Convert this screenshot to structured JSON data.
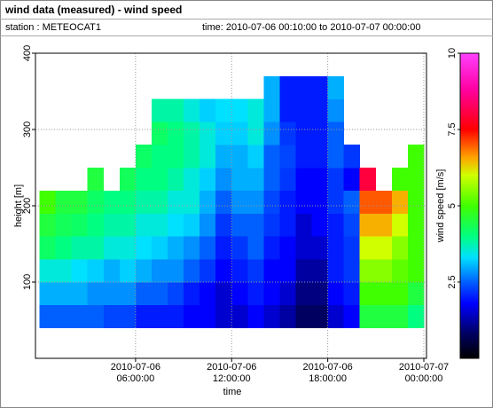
{
  "chart_data": {
    "type": "heatmap",
    "title": "wind data (measured) - wind speed",
    "station": "station : METEOCAT1",
    "time": "time: 2010-07-06 00:10:00 to 2010-07-07 00:00:00",
    "xlabel": "time",
    "ylabel": "height [m]",
    "colorbar_label": "wind speed [m/s]",
    "x_bins": [
      "2010-07-06 00:00:00",
      "2010-07-06 01:00:00",
      "2010-07-06 02:00:00",
      "2010-07-06 03:00:00",
      "2010-07-06 04:00:00",
      "2010-07-06 05:00:00",
      "2010-07-06 06:00:00",
      "2010-07-06 07:00:00",
      "2010-07-06 08:00:00",
      "2010-07-06 09:00:00",
      "2010-07-06 10:00:00",
      "2010-07-06 11:00:00",
      "2010-07-06 12:00:00",
      "2010-07-06 13:00:00",
      "2010-07-06 14:00:00",
      "2010-07-06 15:00:00",
      "2010-07-06 16:00:00",
      "2010-07-06 17:00:00",
      "2010-07-06 18:00:00",
      "2010-07-06 19:00:00",
      "2010-07-06 20:00:00",
      "2010-07-06 21:00:00",
      "2010-07-06 22:00:00",
      "2010-07-06 23:00:00",
      "2010-07-07 00:00:00"
    ],
    "y_bins": [
      40,
      70,
      100,
      130,
      160,
      190,
      220,
      250,
      280,
      310,
      340,
      370
    ],
    "values": [
      [
        2.5,
        3,
        3.5,
        4.2,
        4.5,
        5,
        null,
        null,
        null,
        null,
        null
      ],
      [
        2.5,
        3,
        3.5,
        4,
        4.3,
        4.5,
        null,
        null,
        null,
        null,
        null
      ],
      [
        2.5,
        3,
        3.3,
        3.8,
        4.2,
        4.5,
        null,
        null,
        null,
        null,
        null
      ],
      [
        2.5,
        2.8,
        3.2,
        3.8,
        4,
        4.2,
        4.5,
        null,
        null,
        null,
        null
      ],
      [
        2.3,
        2.8,
        3,
        3.5,
        3.8,
        4,
        null,
        null,
        null,
        null,
        null
      ],
      [
        2.3,
        2.8,
        3.2,
        3.5,
        3.8,
        4,
        4.3,
        null,
        null,
        null,
        null
      ],
      [
        2,
        2.5,
        3,
        3.3,
        3.5,
        3.8,
        4,
        4.2,
        null,
        null,
        null
      ],
      [
        2,
        2.5,
        2.8,
        3.2,
        3.5,
        3.8,
        4,
        4,
        4.2,
        3.8,
        null
      ],
      [
        2,
        2.3,
        2.8,
        3,
        3.3,
        3.5,
        3.8,
        4,
        4,
        3.8,
        null
      ],
      [
        1.8,
        2,
        2.5,
        2.8,
        3.2,
        3.5,
        3.5,
        3.8,
        3.8,
        3.5,
        null
      ],
      [
        1.8,
        1.8,
        2.2,
        2.5,
        2.8,
        3,
        3.2,
        3.5,
        3.5,
        3.2,
        null
      ],
      [
        1.5,
        1.5,
        1.8,
        2,
        2.2,
        2.5,
        2.8,
        3,
        3.2,
        3.3,
        null
      ],
      [
        1.5,
        1.8,
        2,
        2.2,
        2.5,
        2.8,
        3,
        3,
        3.2,
        3.3,
        null
      ],
      [
        1.8,
        2,
        2.2,
        2.5,
        2.5,
        2.8,
        3,
        3.2,
        3.5,
        3.5,
        null
      ],
      [
        1.5,
        1.8,
        1.8,
        2,
        2.2,
        2.3,
        2.5,
        2.5,
        2.8,
        3,
        3
      ],
      [
        1.2,
        1.5,
        1.8,
        1.8,
        2,
        2,
        2.2,
        2.3,
        2.2,
        2,
        2
      ],
      [
        0.8,
        1,
        1.2,
        1.5,
        1.5,
        1.8,
        1.8,
        2,
        2,
        2,
        2
      ],
      [
        0.8,
        1,
        1.2,
        1.5,
        1.8,
        1.8,
        1.8,
        2,
        2,
        2,
        2
      ],
      [
        1.5,
        1.8,
        2,
        2,
        2,
        2.2,
        2.2,
        2.5,
        2.5,
        2.8,
        3
      ],
      [
        1.8,
        2,
        2.2,
        2.2,
        2.3,
        2.5,
        1.8,
        2.2,
        null,
        null,
        null
      ],
      [
        4.5,
        5,
        5.5,
        6,
        6.5,
        7,
        8,
        null,
        null,
        null,
        null
      ],
      [
        4.5,
        5,
        5.5,
        6,
        6.5,
        7,
        null,
        null,
        null,
        null,
        null
      ],
      [
        4.5,
        5,
        5.2,
        5.5,
        6,
        6.5,
        5,
        null,
        null,
        null,
        null
      ],
      [
        4,
        4.5,
        5,
        5,
        5,
        5,
        5,
        5,
        null,
        null,
        null
      ]
    ],
    "xlim": [
      "2010-07-05 23:45:00",
      "2010-07-07 00:10:00"
    ],
    "xticks": [
      "2010-07-06 06:00:00",
      "2010-07-06 12:00:00",
      "2010-07-06 18:00:00",
      "2010-07-07 00:00:00"
    ],
    "ylim": [
      0,
      400
    ],
    "yticks": [
      100,
      200,
      300,
      400
    ],
    "clim": [
      0,
      10
    ],
    "cticks": [
      2.5,
      5,
      7.5,
      10
    ],
    "colorscale": [
      [
        0,
        "#000000"
      ],
      [
        0.8,
        "#000060"
      ],
      [
        1.8,
        "#0000ff"
      ],
      [
        2.5,
        "#0060ff"
      ],
      [
        3.3,
        "#00e0ff"
      ],
      [
        4,
        "#00ff80"
      ],
      [
        5,
        "#40ff00"
      ],
      [
        6,
        "#d0ff00"
      ],
      [
        6.6,
        "#ffa000"
      ],
      [
        7.5,
        "#ff0000"
      ],
      [
        8.8,
        "#ff00a0"
      ],
      [
        10,
        "#ff40ff"
      ]
    ],
    "grid": true
  }
}
